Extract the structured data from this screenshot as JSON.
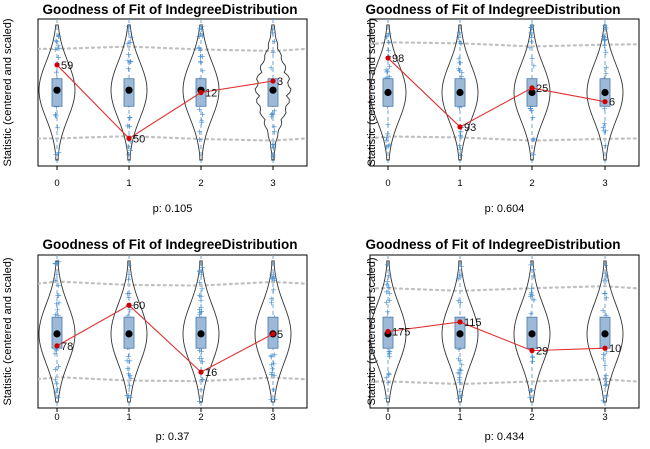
{
  "chart_data": [
    {
      "type": "violin",
      "title": "Goodness of Fit of IndegreeDistribution",
      "ylabel": "Statistic (centered and scaled)",
      "xlabel": "p: 0.105",
      "categories": [
        "0",
        "1",
        "2",
        "3"
      ],
      "observed": [
        0.6,
        -1.0,
        0.0,
        0.25
      ],
      "observed_labels": [
        "59",
        "50",
        "12",
        "3"
      ],
      "simulated_median": [
        0.05,
        0.05,
        0.05,
        0.05
      ],
      "simulated_box": [
        [
          -0.3,
          0.3
        ],
        [
          -0.3,
          0.3
        ],
        [
          -0.3,
          0.3
        ],
        [
          -0.3,
          0.3
        ]
      ],
      "band_upper": [
        0.95,
        0.95,
        0.95,
        0.95
      ],
      "band_lower": [
        -1.0,
        -1.0,
        -1.0,
        -1.0
      ],
      "ylim": [
        -1.6,
        1.6
      ]
    },
    {
      "type": "violin",
      "title": "Goodness of Fit of IndegreeDistribution",
      "ylabel": "Statistic (centered and scaled)",
      "xlabel": "p: 0.604",
      "categories": [
        "0",
        "1",
        "2",
        "3"
      ],
      "observed": [
        0.75,
        -0.75,
        0.1,
        -0.2
      ],
      "observed_labels": [
        "98",
        "93",
        "25",
        "6"
      ],
      "simulated_median": [
        0.0,
        0.0,
        0.0,
        0.0
      ],
      "simulated_box": [
        [
          -0.3,
          0.3
        ],
        [
          -0.3,
          0.3
        ],
        [
          -0.3,
          0.3
        ],
        [
          -0.3,
          0.3
        ]
      ],
      "band_upper": [
        1.05,
        1.05,
        1.05,
        1.05
      ],
      "band_lower": [
        -1.0,
        -1.0,
        -1.0,
        -1.0
      ],
      "ylim": [
        -1.6,
        1.6
      ]
    },
    {
      "type": "violin",
      "title": "Goodness of Fit of IndegreeDistribution",
      "ylabel": "Statistic (centered and scaled)",
      "xlabel": "p: 0.37",
      "categories": [
        "0",
        "1",
        "2",
        "3"
      ],
      "observed": [
        -0.3,
        0.55,
        -0.85,
        -0.05
      ],
      "observed_labels": [
        "78",
        "60",
        "16",
        "5"
      ],
      "simulated_median": [
        -0.05,
        -0.05,
        -0.05,
        -0.05
      ],
      "simulated_box": [
        [
          -0.35,
          0.3
        ],
        [
          -0.35,
          0.3
        ],
        [
          -0.35,
          0.3
        ],
        [
          -0.35,
          0.3
        ]
      ],
      "band_upper": [
        1.0,
        1.0,
        1.0,
        1.0
      ],
      "band_lower": [
        -1.0,
        -1.0,
        -1.0,
        -1.0
      ],
      "ylim": [
        -1.6,
        1.6
      ]
    },
    {
      "type": "violin",
      "title": "Goodness of Fit of IndegreeDistribution",
      "ylabel": "Statistic (centered and scaled)",
      "xlabel": "p: 0.434",
      "categories": [
        "0",
        "1",
        "2",
        "3"
      ],
      "observed": [
        0.0,
        0.2,
        -0.4,
        -0.35
      ],
      "observed_labels": [
        "175",
        "115",
        "29",
        "10"
      ],
      "simulated_median": [
        -0.05,
        -0.05,
        -0.05,
        -0.05
      ],
      "simulated_box": [
        [
          -0.35,
          0.3
        ],
        [
          -0.35,
          0.3
        ],
        [
          -0.35,
          0.3
        ],
        [
          -0.35,
          0.3
        ]
      ],
      "band_upper": [
        0.9,
        0.9,
        0.9,
        0.9
      ],
      "band_lower": [
        -1.05,
        -1.05,
        -1.05,
        -1.05
      ],
      "ylim": [
        -1.6,
        1.6
      ]
    }
  ],
  "colors": {
    "observed_line": "#e03030",
    "observed_point": "#cc0000",
    "box_fill": "#9db9d8",
    "box_stroke": "#4a78a8",
    "median": "#000000",
    "band": "#c0c0c0",
    "violin": "#333333",
    "jitter": "#4a90d0"
  }
}
